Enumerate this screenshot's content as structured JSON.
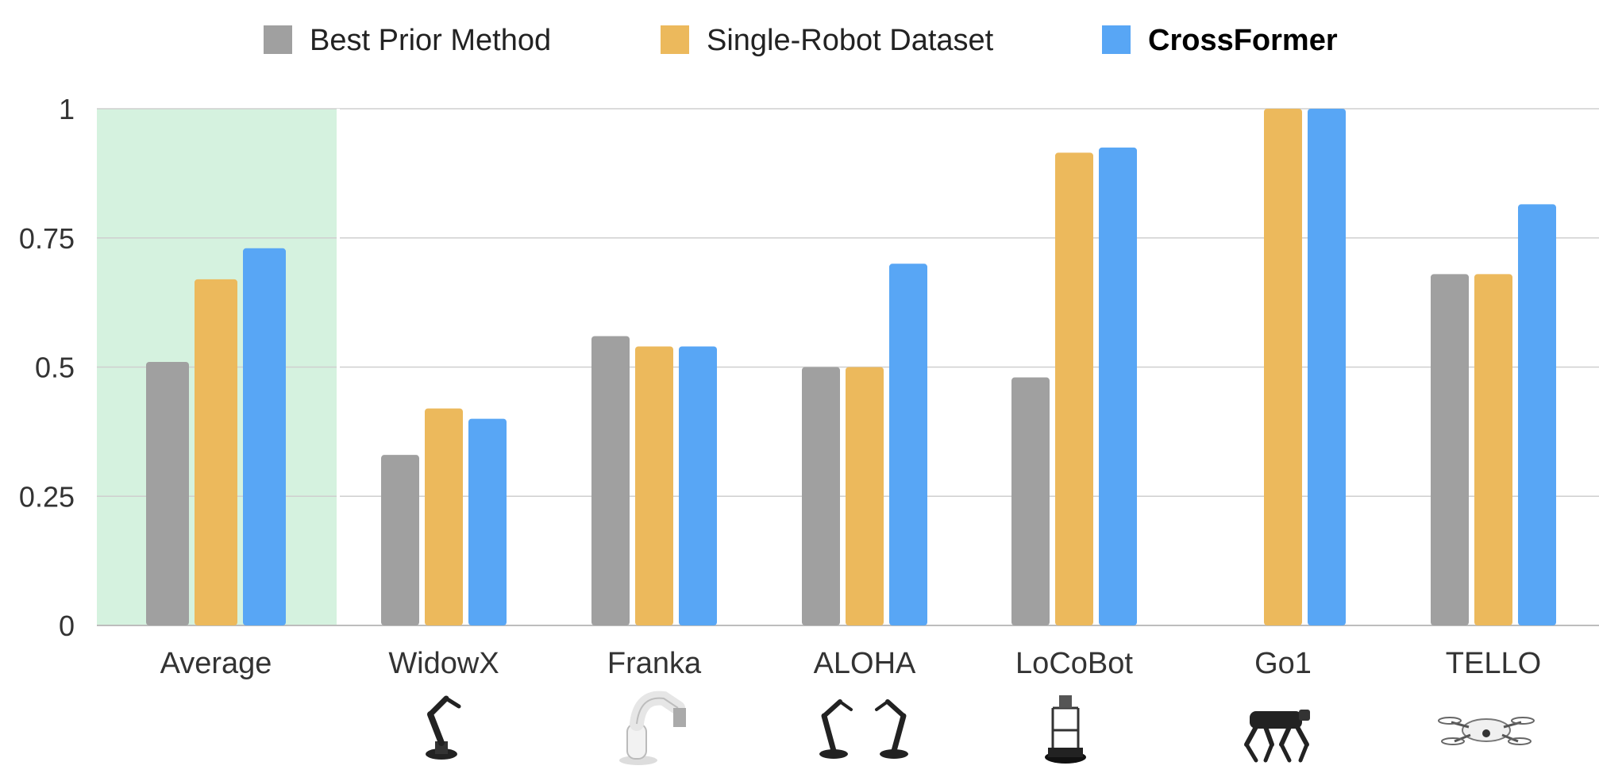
{
  "chart_data": {
    "type": "bar",
    "categories": [
      "Average",
      "WidowX",
      "Franka",
      "ALOHA",
      "LoCoBot",
      "Go1",
      "TELLO"
    ],
    "series": [
      {
        "name": "Best Prior Method",
        "color": "#a0a0a0",
        "values": [
          0.51,
          0.33,
          0.56,
          0.5,
          0.48,
          null,
          0.68
        ]
      },
      {
        "name": "Single-Robot Dataset",
        "color": "#ecb95c",
        "values": [
          0.67,
          0.42,
          0.54,
          0.5,
          0.915,
          1.0,
          0.68
        ]
      },
      {
        "name": "CrossFormer",
        "color": "#58a6f5",
        "values": [
          0.73,
          0.4,
          0.54,
          0.7,
          0.925,
          1.0,
          0.815
        ]
      }
    ],
    "legend_bold": [
      false,
      false,
      true
    ],
    "ylim": [
      0,
      1
    ],
    "yticks": [
      0,
      0.25,
      0.5,
      0.75,
      1
    ],
    "ytick_labels": [
      "0",
      "0.25",
      "0.5",
      "0.75",
      "1"
    ],
    "grid": true,
    "legend_position": "top-center",
    "highlight_category": "Average",
    "highlight_color": "#d5f2df",
    "category_icons": [
      "",
      "robot-arm-icon",
      "franka-arm-icon",
      "dual-arm-icon",
      "locobot-icon",
      "quadruped-icon",
      "drone-icon"
    ]
  }
}
